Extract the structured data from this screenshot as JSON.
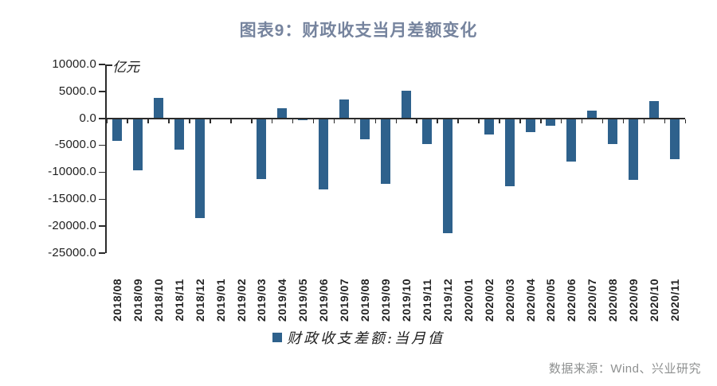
{
  "title": "图表9：财政收支当月差额变化",
  "unit_label": "亿元",
  "legend_label": "财政收支差额:当月值",
  "source": "数据来源：Wind、兴业研究",
  "colors": {
    "bar": "#2e618c",
    "title_text": "#76849e",
    "axis": "#2b2b2b",
    "tick_text": "#1f1f1f",
    "source_text": "#8e9090"
  },
  "chart_data": {
    "type": "bar",
    "title": "图表9：财政收支当月差额变化",
    "unit": "亿元",
    "series_name": "财政收支差额:当月值",
    "categories": [
      "2018/08",
      "2018/09",
      "2018/10",
      "2018/11",
      "2018/12",
      "2019/01",
      "2019/02",
      "2019/03",
      "2019/04",
      "2019/05",
      "2019/06",
      "2019/07",
      "2019/08",
      "2019/09",
      "2019/10",
      "2019/11",
      "2019/12",
      "2020/01",
      "2020/02",
      "2020/03",
      "2020/04",
      "2020/05",
      "2020/06",
      "2020/07",
      "2020/08",
      "2020/09",
      "2020/10",
      "2020/11"
    ],
    "values": [
      -4000,
      -9500,
      3700,
      -5700,
      -18400,
      0,
      0,
      -11100,
      1900,
      -200,
      -13000,
      3400,
      -3700,
      -12000,
      5100,
      -4700,
      -21200,
      0,
      -2900,
      -12500,
      -2400,
      -1300,
      -7900,
      1400,
      -4600,
      -11300,
      3200,
      -7500
    ],
    "ylim": [
      -25000,
      10000
    ],
    "yticks": [
      10000,
      5000,
      0,
      -5000,
      -10000,
      -15000,
      -20000,
      -25000
    ],
    "ytick_format": "one_decimal",
    "grid": false,
    "legend_position": "bottom"
  }
}
